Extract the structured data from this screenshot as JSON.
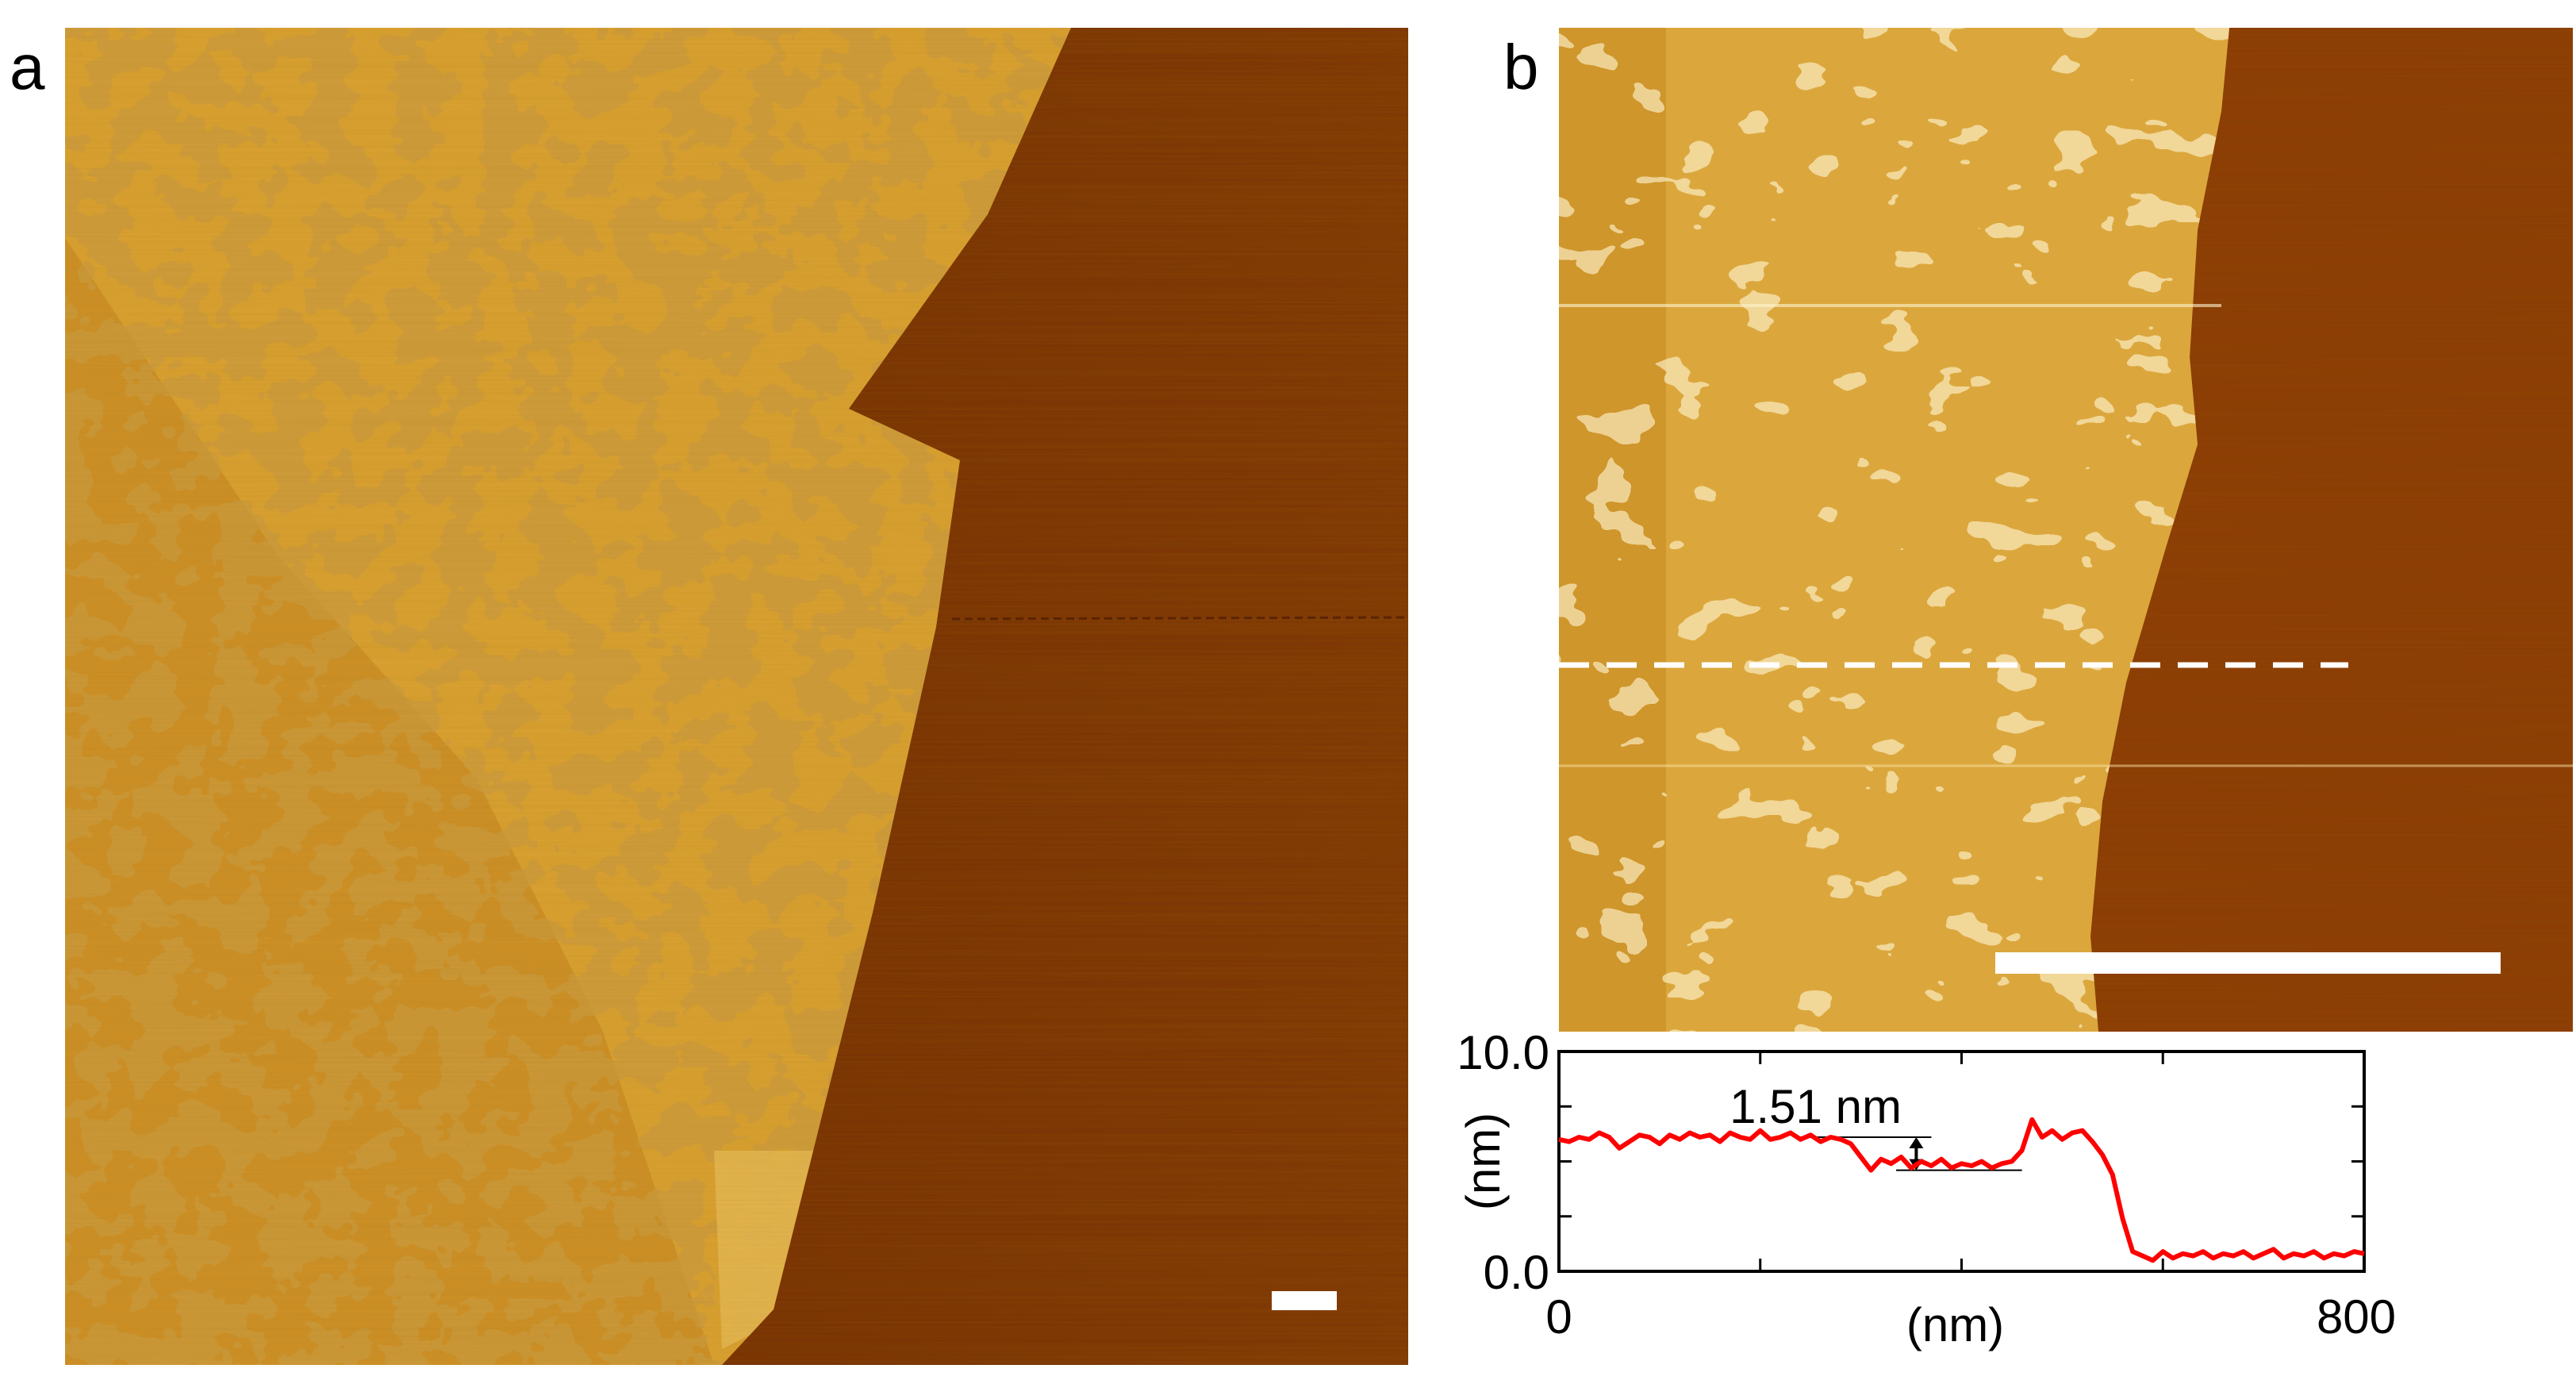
{
  "figure": {
    "panel_a_label": "a",
    "panel_b_label": "b"
  },
  "colors": {
    "afm_dark": "#7a2f04",
    "afm_mid": "#b8650c",
    "afm_light": "#e0ad3a",
    "afm_highlight": "#f6dc8a",
    "profile_line": "#ff0000",
    "scale_bar": "#ffffff"
  },
  "chart_data": {
    "type": "line",
    "xlabel": "(nm)",
    "ylabel": "(nm)",
    "xlim": [
      0,
      800
    ],
    "ylim": [
      0,
      10
    ],
    "x_tick_labels": [
      "0",
      "800"
    ],
    "y_tick_labels": [
      "0.0",
      "10.0"
    ],
    "annotation": "1.51 nm",
    "step_upper_nm": 6.1,
    "step_lower_nm": 4.6,
    "series": [
      {
        "x": [
          0,
          10,
          20,
          30,
          40,
          50,
          60,
          70,
          80,
          90,
          100,
          110,
          120,
          130,
          140,
          150,
          160,
          170,
          180,
          190,
          200,
          210,
          220,
          230,
          240,
          250,
          260,
          270,
          280,
          290,
          300,
          310,
          320,
          330,
          340,
          350,
          360,
          370,
          380,
          390,
          400,
          410,
          420,
          430,
          440,
          450,
          460,
          470,
          480,
          490,
          500,
          510,
          520,
          530,
          540,
          550,
          560,
          570,
          580,
          590,
          600,
          610,
          620,
          630,
          640,
          650,
          660,
          670,
          680,
          690,
          700,
          710,
          720,
          730,
          740,
          750,
          760,
          770,
          780,
          790,
          800
        ],
        "y": [
          6.0,
          5.9,
          6.1,
          6.0,
          6.3,
          6.1,
          5.6,
          5.9,
          6.2,
          6.1,
          5.8,
          6.2,
          6.0,
          6.3,
          6.1,
          6.2,
          5.9,
          6.3,
          6.1,
          6.0,
          6.4,
          6.0,
          6.1,
          6.3,
          6.0,
          6.2,
          5.9,
          6.1,
          6.0,
          5.8,
          5.2,
          4.6,
          5.1,
          4.9,
          5.2,
          4.7,
          5.0,
          4.8,
          5.1,
          4.7,
          4.9,
          4.8,
          5.0,
          4.7,
          4.9,
          5.0,
          5.5,
          6.9,
          6.1,
          6.4,
          6.0,
          6.3,
          6.4,
          5.9,
          5.3,
          4.4,
          2.4,
          0.9,
          0.7,
          0.5,
          0.9,
          0.6,
          0.8,
          0.7,
          0.9,
          0.6,
          0.8,
          0.7,
          0.9,
          0.6,
          0.8,
          1.0,
          0.6,
          0.8,
          0.7,
          0.9,
          0.6,
          0.8,
          0.7,
          0.9,
          0.8
        ]
      }
    ]
  }
}
